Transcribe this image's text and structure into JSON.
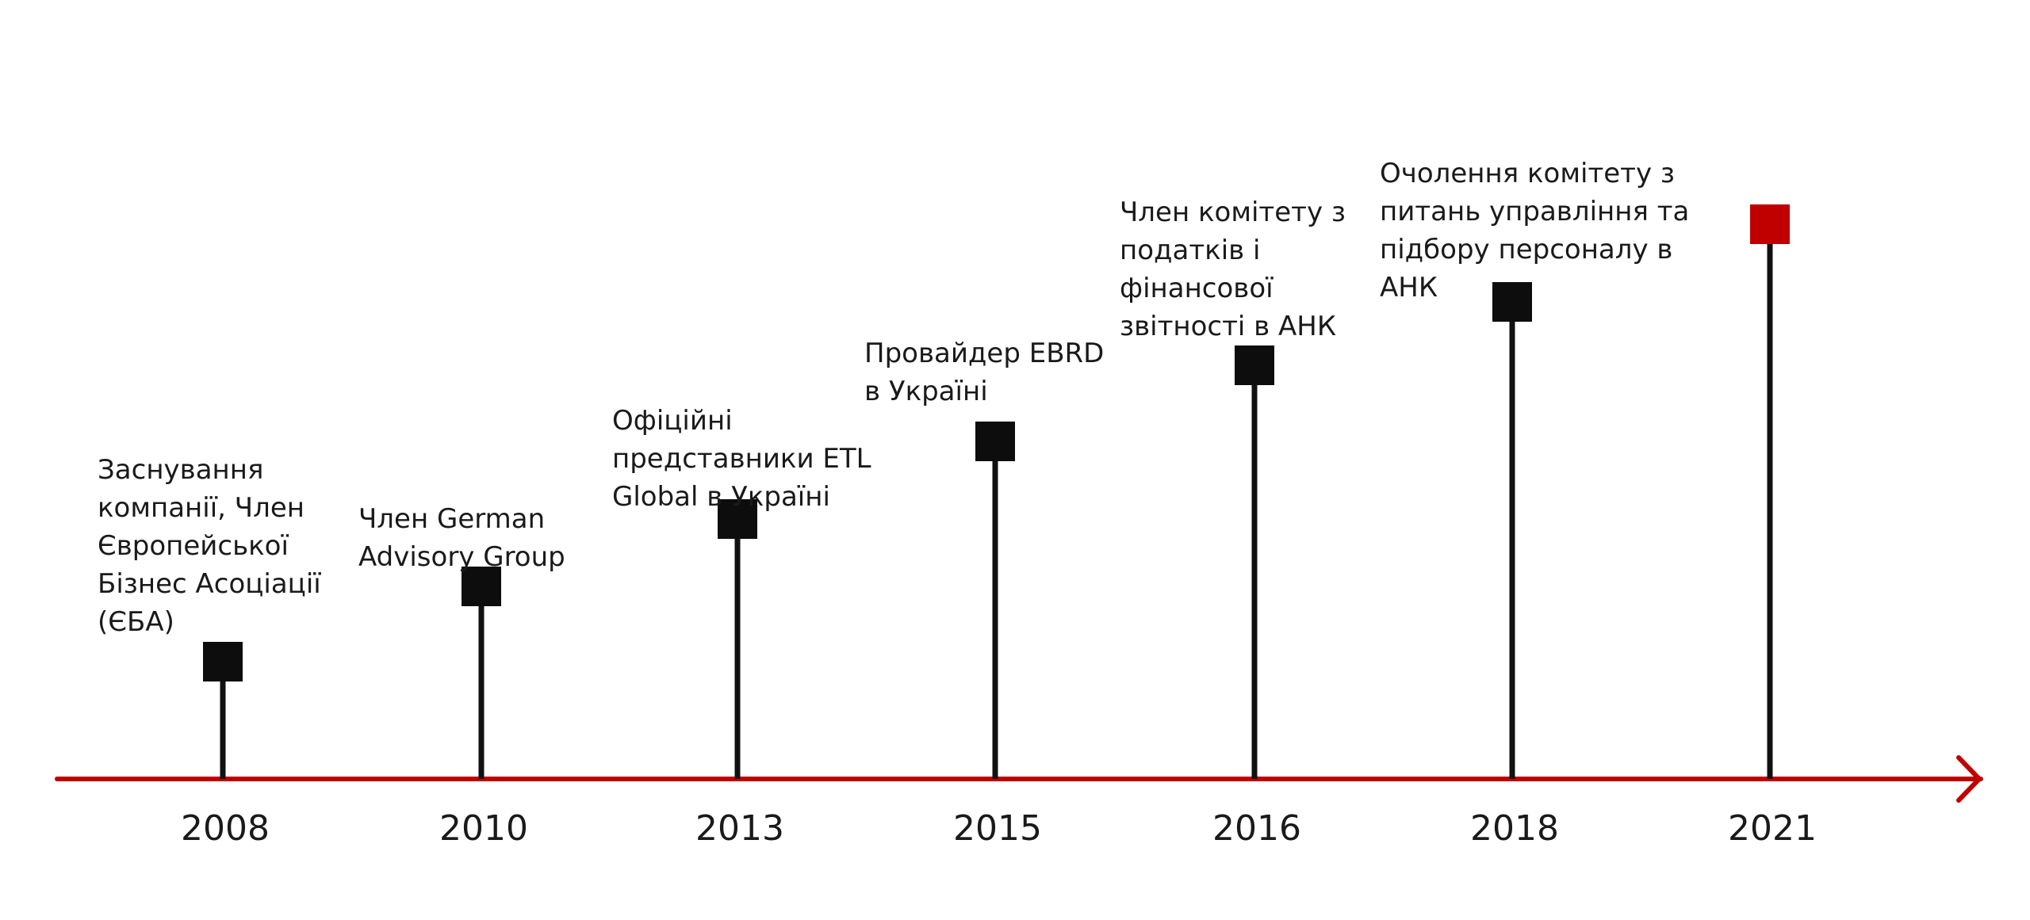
{
  "colors": {
    "axis": "#c00000",
    "stem": "#111111",
    "marker": "#0d0d0d",
    "highlight": "#c00000",
    "text": "#1a1a1a"
  },
  "milestones": [
    {
      "year": "2008",
      "lines": [
        "Заснування",
        "компанії, Член",
        "Європейської",
        "Бізнес Асоціації",
        "(ЄБА)"
      ],
      "highlight": false
    },
    {
      "year": "2010",
      "lines": [
        "Член German",
        "Advisory Group"
      ],
      "highlight": false
    },
    {
      "year": "2013",
      "lines": [
        "Офіційні",
        "представники ETL",
        "Global в Україні"
      ],
      "highlight": false
    },
    {
      "year": "2015",
      "lines": [
        "Провайдер EBRD",
        "в Україні"
      ],
      "highlight": false
    },
    {
      "year": "2016",
      "lines": [
        "Член комітету з",
        "податків і",
        "фінансової",
        "звітності в АНК"
      ],
      "highlight": false
    },
    {
      "year": "2018",
      "lines": [
        "Очолення комітету з",
        "питань управління та",
        "підбору персоналу в",
        "АНК"
      ],
      "highlight": false
    },
    {
      "year": "2021",
      "lines": [],
      "highlight": true
    }
  ]
}
